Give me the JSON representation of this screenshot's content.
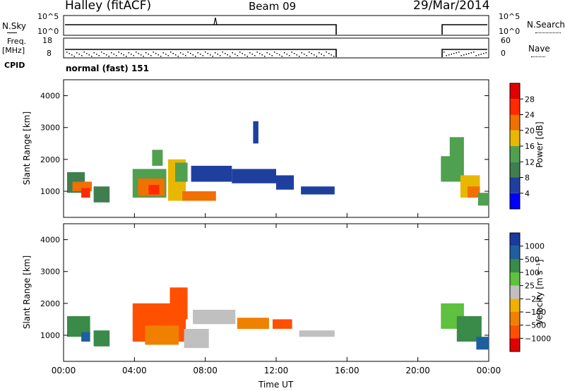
{
  "header": {
    "station": "Halley (fitACF)",
    "beam": "Beam 09",
    "date": "29/Mar/2014"
  },
  "noise_panel": {
    "left_label": "N.Sky",
    "right_label": "N.Search",
    "left_ticks": [
      "10^5",
      "10^0"
    ],
    "right_ticks": [
      "10^5",
      "10^0"
    ]
  },
  "freq_panel": {
    "left_label_1": "Freq.",
    "left_label_2": "[MHz]",
    "right_label": "Nave",
    "left_ticks": [
      "18",
      "8"
    ],
    "right_ticks": [
      "60",
      "0"
    ]
  },
  "cpid": {
    "label": "CPID",
    "value": "normal (fast) 151"
  },
  "colors": {
    "power": [
      "#0000ff",
      "#1f3f9f",
      "#3f7f4f",
      "#4fa04f",
      "#e8b800",
      "#f07000",
      "#ff2a00",
      "#e00000"
    ],
    "velocity": [
      "#e00000",
      "#ff5000",
      "#f08000",
      "#f0b000",
      "#c0c0c0",
      "#60c040",
      "#3a8a4a",
      "#1f5fa0",
      "#1a3aa0"
    ]
  },
  "chart_data": [
    {
      "type": "heatmap",
      "name": "power",
      "xlabel": "",
      "ylabel": "Slant Range [km]",
      "x_range_hours": [
        0,
        24
      ],
      "ylim": [
        180,
        4500
      ],
      "yticks": [
        1000,
        2000,
        3000,
        4000
      ],
      "colorbar": {
        "label": "Power [dB]",
        "ticks": [
          "28",
          "24",
          "20",
          "16",
          "12",
          "8",
          "4"
        ],
        "range": [
          0,
          32
        ]
      },
      "regions": [
        {
          "t0": 0.2,
          "t1": 1.2,
          "r0": 950,
          "r1": 1600,
          "c": 2
        },
        {
          "t0": 0.5,
          "t1": 1.6,
          "r0": 1000,
          "r1": 1300,
          "c": 5
        },
        {
          "t0": 1.0,
          "t1": 1.5,
          "r0": 800,
          "r1": 1100,
          "c": 6
        },
        {
          "t0": 1.7,
          "t1": 2.6,
          "r0": 650,
          "r1": 1150,
          "c": 2
        },
        {
          "t0": 3.9,
          "t1": 5.8,
          "r0": 800,
          "r1": 1700,
          "c": 3
        },
        {
          "t0": 4.2,
          "t1": 5.7,
          "r0": 850,
          "r1": 1400,
          "c": 5
        },
        {
          "t0": 4.8,
          "t1": 5.4,
          "r0": 900,
          "r1": 1200,
          "c": 6
        },
        {
          "t0": 5.0,
          "t1": 5.6,
          "r0": 1800,
          "r1": 2300,
          "c": 3
        },
        {
          "t0": 5.9,
          "t1": 6.9,
          "r0": 700,
          "r1": 2000,
          "c": 4
        },
        {
          "t0": 6.3,
          "t1": 7.0,
          "r0": 1300,
          "r1": 1900,
          "c": 3
        },
        {
          "t0": 6.7,
          "t1": 8.6,
          "r0": 700,
          "r1": 1000,
          "c": 5
        },
        {
          "t0": 7.2,
          "t1": 9.5,
          "r0": 1300,
          "r1": 1800,
          "c": 1
        },
        {
          "t0": 9.5,
          "t1": 12.0,
          "r0": 1250,
          "r1": 1700,
          "c": 1
        },
        {
          "t0": 10.7,
          "t1": 11.0,
          "r0": 2500,
          "r1": 3200,
          "c": 1
        },
        {
          "t0": 12.0,
          "t1": 13.0,
          "r0": 1050,
          "r1": 1500,
          "c": 1
        },
        {
          "t0": 13.4,
          "t1": 15.3,
          "r0": 900,
          "r1": 1150,
          "c": 1
        },
        {
          "t0": 21.3,
          "t1": 22.5,
          "r0": 1300,
          "r1": 2100,
          "c": 3
        },
        {
          "t0": 21.8,
          "t1": 22.6,
          "r0": 1500,
          "r1": 2700,
          "c": 3
        },
        {
          "t0": 22.4,
          "t1": 23.5,
          "r0": 800,
          "r1": 1500,
          "c": 4
        },
        {
          "t0": 22.8,
          "t1": 23.5,
          "r0": 800,
          "r1": 1150,
          "c": 5
        },
        {
          "t0": 23.4,
          "t1": 24.0,
          "r0": 550,
          "r1": 950,
          "c": 3
        }
      ]
    },
    {
      "type": "heatmap",
      "name": "velocity",
      "xlabel": "Time UT",
      "ylabel": "Slant Range [km]",
      "x_range_hours": [
        0,
        24
      ],
      "xticks": [
        "00:00",
        "04:00",
        "08:00",
        "12:00",
        "16:00",
        "20:00",
        "00:00"
      ],
      "ylim": [
        180,
        4500
      ],
      "yticks": [
        1000,
        2000,
        3000,
        4000
      ],
      "colorbar": {
        "label": "Velocity [m s⁻¹]",
        "ticks": [
          "1000",
          "500",
          "100",
          "25",
          "−25",
          "−100",
          "−500",
          "−1000"
        ],
        "range": [
          -1000,
          1000
        ]
      },
      "regions": [
        {
          "t0": 0.2,
          "t1": 1.5,
          "r0": 950,
          "r1": 1600,
          "c": 6
        },
        {
          "t0": 1.0,
          "t1": 1.5,
          "r0": 800,
          "r1": 1100,
          "c": 7
        },
        {
          "t0": 1.7,
          "t1": 2.6,
          "r0": 650,
          "r1": 1150,
          "c": 6
        },
        {
          "t0": 3.9,
          "t1": 6.9,
          "r0": 800,
          "r1": 2000,
          "c": 1
        },
        {
          "t0": 4.6,
          "t1": 6.5,
          "r0": 700,
          "r1": 1300,
          "c": 2
        },
        {
          "t0": 6.0,
          "t1": 7.0,
          "r0": 1500,
          "r1": 2500,
          "c": 1
        },
        {
          "t0": 6.8,
          "t1": 8.2,
          "r0": 600,
          "r1": 1200,
          "c": 4
        },
        {
          "t0": 7.3,
          "t1": 9.7,
          "r0": 1350,
          "r1": 1800,
          "c": 4
        },
        {
          "t0": 9.8,
          "t1": 11.6,
          "r0": 1200,
          "r1": 1550,
          "c": 2
        },
        {
          "t0": 11.8,
          "t1": 12.9,
          "r0": 1200,
          "r1": 1500,
          "c": 1
        },
        {
          "t0": 13.3,
          "t1": 15.3,
          "r0": 950,
          "r1": 1150,
          "c": 4
        },
        {
          "t0": 21.3,
          "t1": 22.6,
          "r0": 1200,
          "r1": 2000,
          "c": 5
        },
        {
          "t0": 22.2,
          "t1": 23.6,
          "r0": 800,
          "r1": 1600,
          "c": 6
        },
        {
          "t0": 23.3,
          "t1": 24.0,
          "r0": 550,
          "r1": 950,
          "c": 7
        }
      ]
    }
  ]
}
